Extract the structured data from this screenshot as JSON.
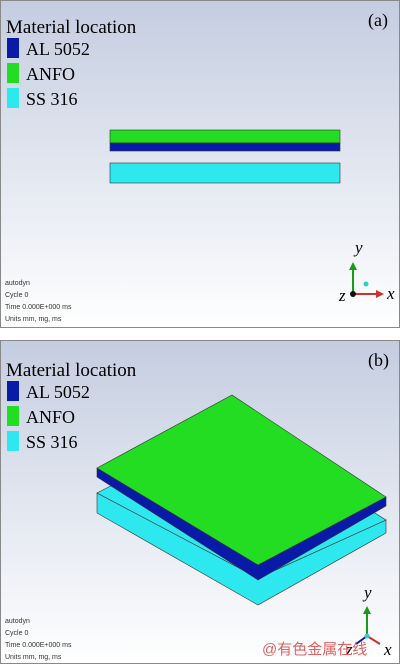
{
  "panels": [
    {
      "label": "(a)",
      "legend_title": "Material location",
      "legend": [
        "AL 5052",
        "ANFO",
        "SS 316"
      ],
      "info": [
        "autodyn",
        "Cycle 0",
        "Time 0.000E+000 ms",
        "Units mm, mg, ms"
      ],
      "axes": [
        "y",
        "z",
        "x"
      ]
    },
    {
      "label": "(b)",
      "legend_title": "Material location",
      "legend": [
        "AL 5052",
        "ANFO",
        "SS 316"
      ],
      "info": [
        "autodyn",
        "Cycle 0",
        "Time 0.000E+000 ms",
        "Units mm, mg, ms"
      ],
      "axes": [
        "y",
        "z",
        "x"
      ],
      "watermark": "@有色金属在线"
    }
  ]
}
